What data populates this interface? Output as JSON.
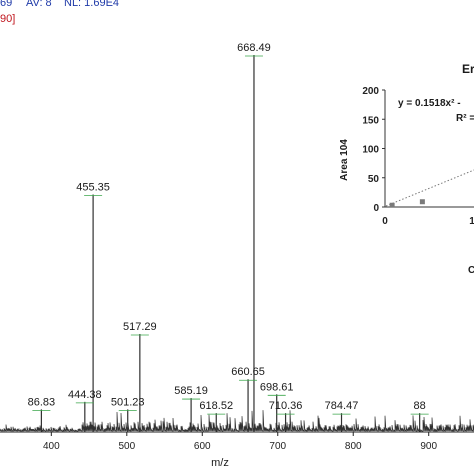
{
  "header": {
    "scan_info_fragment_left": "69",
    "av_label": "AV: 8",
    "nl_label": "NL: 1.69E4",
    "second_line_fragment": "90]"
  },
  "colors": {
    "header_blue": "#1f3aa8",
    "header_red": "#c0141c",
    "trace": "#303030",
    "label_line": "#3aa64a"
  },
  "chart_data": [
    {
      "type": "line",
      "title": "",
      "xlabel": "m/z",
      "ylabel": "",
      "xlim": [
        332,
        960
      ],
      "ylim": [
        0,
        100
      ],
      "x_ticks": [
        400,
        500,
        600,
        700,
        800,
        900
      ],
      "grid": false,
      "peaks": [
        {
          "mz": 386.83,
          "label": "86.83",
          "rel": 6
        },
        {
          "mz": 444.38,
          "label": "444.38",
          "rel": 8
        },
        {
          "mz": 455.35,
          "label": "455.35",
          "rel": 63
        },
        {
          "mz": 501.23,
          "label": "501.23",
          "rel": 6
        },
        {
          "mz": 517.29,
          "label": "517.29",
          "rel": 26
        },
        {
          "mz": 585.19,
          "label": "585.19",
          "rel": 9
        },
        {
          "mz": 618.52,
          "label": "618.52",
          "rel": 5
        },
        {
          "mz": 660.65,
          "label": "660.65",
          "rel": 14
        },
        {
          "mz": 668.49,
          "label": "668.49",
          "rel": 100
        },
        {
          "mz": 698.61,
          "label": "698.61",
          "rel": 10
        },
        {
          "mz": 710.36,
          "label": "710.36",
          "rel": 5
        },
        {
          "mz": 784.47,
          "label": "784.47",
          "rel": 5
        },
        {
          "mz": 888.0,
          "label": "88",
          "rel": 5
        }
      ]
    },
    {
      "type": "scatter",
      "title": "Er",
      "xlabel": "C",
      "ylabel": "Area 104",
      "xlim": [
        0,
        20
      ],
      "ylim": [
        0,
        200
      ],
      "y_ticks": [
        0,
        50,
        100,
        150,
        200
      ],
      "x_ticks_visible": [
        "0",
        "1"
      ],
      "equation": "y = 0.1518x² -",
      "r_squared_label": "R² =",
      "points": [
        {
          "x": 0.8,
          "y": 3
        },
        {
          "x": 4.2,
          "y": 9
        }
      ],
      "trendline": "dotted"
    }
  ]
}
